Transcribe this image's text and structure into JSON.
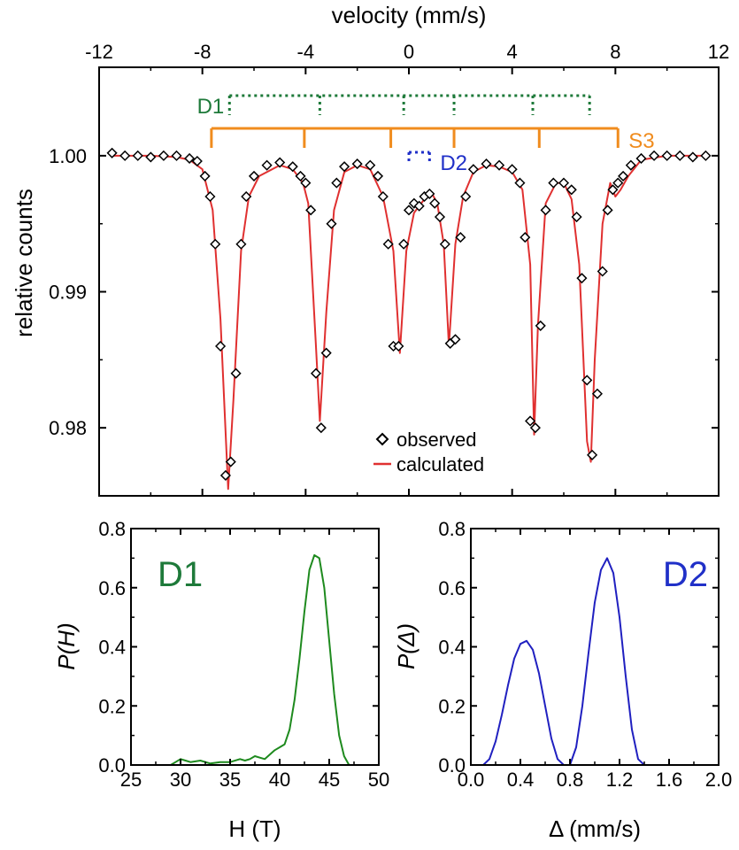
{
  "chart_data": [
    {
      "type": "scatter",
      "xlabel": "velocity (mm/s)",
      "ylabel": "relative counts",
      "xlim": [
        -12,
        12
      ],
      "ylim": [
        0.975,
        1.0065
      ],
      "x_ticks": [
        "-12",
        "-8",
        "-4",
        "0",
        "4",
        "8",
        "12"
      ],
      "y_ticks": [
        "1.00",
        "0.99",
        "0.98"
      ],
      "legend": [
        "observed",
        "calculated"
      ],
      "legend_placement": "bottom-center",
      "series": [
        {
          "name": "observed",
          "style": "open-diamond",
          "color": "#000000",
          "x": [
            -11.5,
            -11.0,
            -10.5,
            -10.0,
            -9.5,
            -9.0,
            -8.5,
            -8.2,
            -7.9,
            -7.7,
            -7.5,
            -7.3,
            -7.1,
            -6.9,
            -6.7,
            -6.5,
            -6.3,
            -6.0,
            -5.5,
            -5.0,
            -4.5,
            -4.2,
            -4.0,
            -3.8,
            -3.6,
            -3.4,
            -3.2,
            -3.0,
            -2.8,
            -2.5,
            -2.0,
            -1.5,
            -1.2,
            -1.0,
            -0.8,
            -0.6,
            -0.4,
            -0.2,
            0.0,
            0.2,
            0.4,
            0.6,
            0.8,
            1.0,
            1.2,
            1.4,
            1.6,
            1.8,
            2.0,
            2.2,
            2.5,
            3.0,
            3.5,
            4.0,
            4.3,
            4.5,
            4.7,
            4.9,
            5.1,
            5.3,
            5.6,
            6.0,
            6.3,
            6.5,
            6.7,
            6.9,
            7.1,
            7.3,
            7.5,
            7.7,
            7.9,
            8.1,
            8.3,
            8.6,
            9.0,
            9.5,
            10.0,
            10.5,
            11.0,
            11.5
          ],
          "y": [
            1.0002,
            1.0,
            1.0,
            0.9999,
            1.0,
            1.0,
            0.9998,
            0.9996,
            0.9985,
            0.997,
            0.9935,
            0.986,
            0.9765,
            0.9775,
            0.984,
            0.9935,
            0.997,
            0.9985,
            0.9993,
            0.9995,
            0.9992,
            0.9985,
            0.998,
            0.996,
            0.984,
            0.98,
            0.9855,
            0.995,
            0.998,
            0.9992,
            0.9994,
            0.9993,
            0.9985,
            0.997,
            0.9935,
            0.986,
            0.986,
            0.9935,
            0.996,
            0.9965,
            0.9963,
            0.997,
            0.9972,
            0.9965,
            0.9955,
            0.9935,
            0.9862,
            0.9865,
            0.994,
            0.997,
            0.999,
            0.9994,
            0.9993,
            0.999,
            0.998,
            0.994,
            0.9805,
            0.98,
            0.9875,
            0.996,
            0.998,
            0.998,
            0.9975,
            0.9955,
            0.991,
            0.9835,
            0.978,
            0.9825,
            0.9915,
            0.996,
            0.9975,
            0.998,
            0.9985,
            0.9993,
            0.9998,
            1.0,
            1.0,
            1.0,
            0.9999,
            1.0
          ]
        },
        {
          "name": "calculated",
          "style": "line",
          "color": "#e03030",
          "x": [
            -11.5,
            -10.0,
            -9.0,
            -8.5,
            -8.0,
            -7.6,
            -7.3,
            -7.0,
            -6.8,
            -6.5,
            -6.2,
            -5.8,
            -5.0,
            -4.5,
            -4.1,
            -3.9,
            -3.6,
            -3.45,
            -3.2,
            -2.9,
            -2.5,
            -2.0,
            -1.5,
            -1.0,
            -0.6,
            -0.35,
            -0.1,
            0.2,
            0.6,
            0.9,
            1.1,
            1.35,
            1.55,
            1.8,
            2.1,
            2.5,
            3.0,
            3.5,
            4.0,
            4.4,
            4.7,
            4.85,
            5.0,
            5.3,
            5.7,
            6.0,
            6.3,
            6.6,
            6.9,
            7.05,
            7.2,
            7.5,
            7.8,
            8.0,
            8.2,
            8.5,
            9.0,
            10.0,
            11.5
          ],
          "y": [
            1.0,
            1.0,
            0.9999,
            0.9997,
            0.999,
            0.996,
            0.988,
            0.9755,
            0.982,
            0.993,
            0.997,
            0.9985,
            0.9993,
            0.999,
            0.998,
            0.9965,
            0.986,
            0.9805,
            0.9885,
            0.996,
            0.9988,
            0.9993,
            0.999,
            0.997,
            0.993,
            0.9855,
            0.993,
            0.9958,
            0.9968,
            0.9972,
            0.9965,
            0.9935,
            0.986,
            0.9935,
            0.997,
            0.9988,
            0.9993,
            0.9992,
            0.9988,
            0.9975,
            0.992,
            0.9795,
            0.9875,
            0.9965,
            0.998,
            0.998,
            0.9968,
            0.992,
            0.979,
            0.9775,
            0.985,
            0.995,
            0.998,
            0.997,
            0.9975,
            0.9985,
            0.9997,
            1.0,
            1.0
          ]
        }
      ],
      "annotations": [
        {
          "label": "D1",
          "color": "#1e7a3a",
          "style": "dotted",
          "lines": [
            -6.95,
            -3.45,
            -0.2,
            1.75,
            4.8,
            7.0
          ]
        },
        {
          "label": "S3",
          "color": "#f08c1e",
          "style": "solid",
          "lines": [
            -7.65,
            -4.05,
            -0.7,
            1.75,
            5.05,
            8.1
          ]
        },
        {
          "label": "D2",
          "color": "#2030c8",
          "style": "dotted",
          "lines": [
            0.0,
            0.8
          ]
        }
      ]
    },
    {
      "type": "line",
      "title": "D1",
      "xlabel": "H (T)",
      "ylabel": "P(H)",
      "xlim": [
        25,
        50
      ],
      "ylim": [
        0,
        0.8
      ],
      "x_ticks": [
        "25",
        "30",
        "35",
        "40",
        "45",
        "50"
      ],
      "y_ticks": [
        "0.0",
        "0.2",
        "0.4",
        "0.6",
        "0.8"
      ],
      "series": [
        {
          "name": "",
          "color": "#1e8a1e",
          "x": [
            25,
            28,
            29,
            29.5,
            30,
            30.5,
            31,
            32,
            33,
            34,
            35,
            36,
            36.5,
            37,
            37.5,
            38,
            38.5,
            39,
            39.5,
            40,
            40.5,
            41,
            41.5,
            42,
            42.5,
            43,
            43.5,
            44,
            44.5,
            45,
            45.5,
            46,
            46.5,
            47,
            50
          ],
          "y": [
            0.0,
            0.0,
            0.0,
            0.01,
            0.02,
            0.015,
            0.01,
            0.015,
            0.005,
            0.01,
            0.01,
            0.02,
            0.015,
            0.02,
            0.03,
            0.025,
            0.02,
            0.035,
            0.05,
            0.06,
            0.07,
            0.12,
            0.22,
            0.36,
            0.52,
            0.66,
            0.71,
            0.7,
            0.6,
            0.42,
            0.24,
            0.1,
            0.03,
            0.0,
            0.0
          ]
        }
      ]
    },
    {
      "type": "line",
      "title": "D2",
      "xlabel": "Δ (mm/s)",
      "ylabel": "P(Δ)",
      "xlim": [
        0.0,
        2.0
      ],
      "ylim": [
        0,
        0.8
      ],
      "x_ticks": [
        "0.0",
        "0.4",
        "0.8",
        "1.2",
        "1.6",
        "2.0"
      ],
      "y_ticks": [
        "0.0",
        "0.2",
        "0.4",
        "0.6",
        "0.8"
      ],
      "series": [
        {
          "name": "",
          "color": "#2020c0",
          "x": [
            0.0,
            0.1,
            0.15,
            0.2,
            0.25,
            0.3,
            0.35,
            0.4,
            0.45,
            0.5,
            0.55,
            0.6,
            0.65,
            0.7,
            0.75,
            0.8,
            0.85,
            0.9,
            0.95,
            1.0,
            1.05,
            1.1,
            1.15,
            1.2,
            1.25,
            1.3,
            1.35,
            1.4,
            2.0
          ],
          "y": [
            0.0,
            0.0,
            0.02,
            0.08,
            0.17,
            0.27,
            0.36,
            0.41,
            0.42,
            0.39,
            0.31,
            0.2,
            0.09,
            0.02,
            0.0,
            0.0,
            0.06,
            0.2,
            0.38,
            0.55,
            0.66,
            0.7,
            0.65,
            0.5,
            0.3,
            0.12,
            0.02,
            0.0,
            0.0
          ]
        }
      ]
    }
  ]
}
